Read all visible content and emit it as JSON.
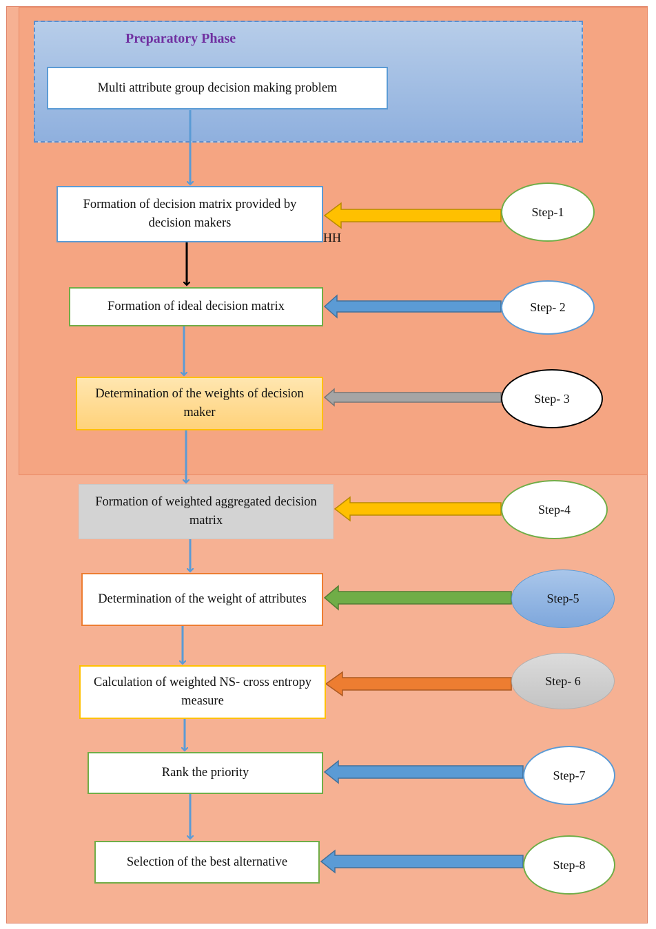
{
  "phase_title": "Preparatory Phase",
  "problem": "Multi attribute group decision making problem",
  "steps": [
    {
      "box": "Formation of decision matrix provided by decision makers",
      "label": "Step-1"
    },
    {
      "box": "Formation of ideal decision matrix",
      "label": "Step- 2"
    },
    {
      "box": "Determination of the weights of decision maker",
      "label": "Step- 3"
    },
    {
      "box": "Formation of weighted aggregated decision matrix",
      "label": "Step-4"
    },
    {
      "box": "Determination of the weight of attributes",
      "label": "Step-5"
    },
    {
      "box": "Calculation of weighted NS- cross entropy measure",
      "label": "Step- 6"
    },
    {
      "box": "Rank the priority",
      "label": "Step-7"
    },
    {
      "box": "Selection of the best alternative",
      "label": "Step-8"
    }
  ],
  "stray_text": "HH",
  "colors": {
    "outer_bg": "#f6b193",
    "prep_bg": "#9dbbe3",
    "phase_title": "#7030a0",
    "flow_arrow": "#5b9bd5",
    "arrow_step1": "#ffc000",
    "arrow_step2": "#5b9bd5",
    "arrow_step3": "#a5a5a5",
    "arrow_step4": "#ffc000",
    "arrow_step5": "#70ad47",
    "arrow_step6": "#ed7d31",
    "arrow_step7": "#5b9bd5",
    "arrow_step8": "#5b9bd5"
  }
}
